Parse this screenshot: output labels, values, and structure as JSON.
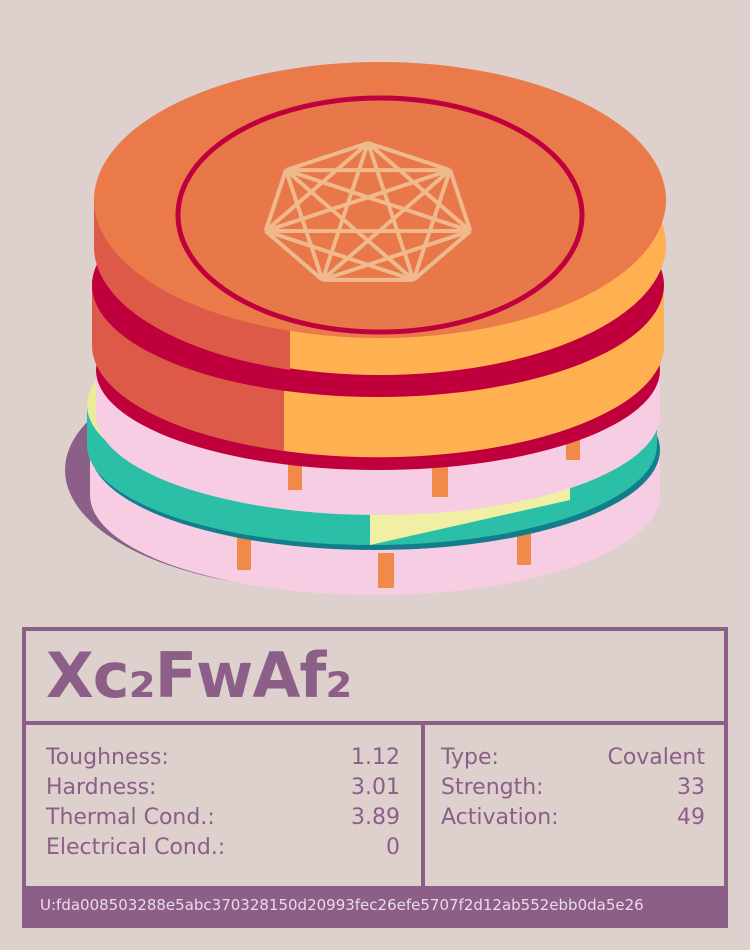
{
  "card": {
    "title": "Xc₂FwAf₂",
    "stats": [
      {
        "label": "Toughness:",
        "value": "1.12"
      },
      {
        "label": "Hardness:",
        "value": "3.01"
      },
      {
        "label": "Thermal Cond.:",
        "value": "3.89"
      },
      {
        "label": "Electrical Cond.:",
        "value": "0"
      }
    ],
    "bond": [
      {
        "label": "Type:",
        "value": "Covalent"
      },
      {
        "label": "Strength:",
        "value": "33"
      },
      {
        "label": "Activation:",
        "value": "49"
      }
    ],
    "id": "U:fda008503288e5abc370328150d20993fec26efe5707f2d12ab552ebb0da5e26"
  }
}
